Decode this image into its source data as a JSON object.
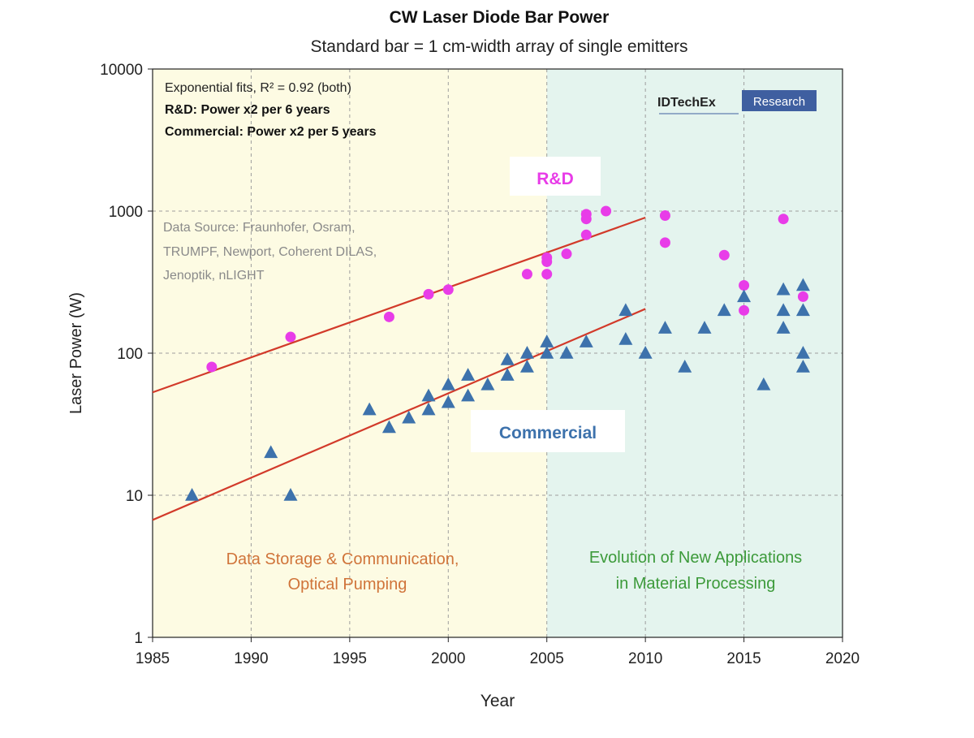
{
  "colors": {
    "left_region": "#fdfbe3",
    "right_region": "#e4f4ee",
    "rd": "#e83ce8",
    "commercial": "#3d72ac",
    "fit_line": "#d23a2a",
    "left_region_text": "#d0743a",
    "right_region_text": "#3c9a3a",
    "data_source_text": "#8a8a8a",
    "logo_box": "#3f5fa0",
    "grid": "#9e9e9e"
  },
  "chart_data": {
    "type": "scatter",
    "title": "CW Laser Diode Bar Power",
    "subtitle": "Standard bar = 1 cm-width array of single emitters",
    "xlabel": "Year",
    "ylabel": "Laser Power (W)",
    "xlim": [
      1985,
      2020
    ],
    "ylim": [
      1,
      10000
    ],
    "yscale": "log",
    "grid": true,
    "x_ticks": [
      1985,
      1990,
      1995,
      2000,
      2005,
      2010,
      2015,
      2020
    ],
    "y_ticks": [
      1,
      10,
      100,
      1000,
      10000
    ],
    "x_tick_labels": [
      "1985",
      "1990",
      "1995",
      "2000",
      "2005",
      "2010",
      "2015",
      "2020"
    ],
    "y_tick_labels": [
      "1",
      "10",
      "100",
      "1000",
      "10000"
    ],
    "regions": [
      {
        "x": [
          1985,
          2005
        ],
        "label_lines": [
          "Data Storage & Communication,",
          "Optical Pumping"
        ]
      },
      {
        "x": [
          2005,
          2020
        ],
        "label_lines": [
          "Evolution of New Applications",
          "in Material Processing"
        ]
      }
    ],
    "series": [
      {
        "name": "R&D",
        "marker": "circle",
        "points": [
          [
            1988,
            80
          ],
          [
            1992,
            130
          ],
          [
            1997,
            180
          ],
          [
            1999,
            260
          ],
          [
            2000,
            280
          ],
          [
            2004,
            360
          ],
          [
            2005,
            360
          ],
          [
            2005,
            440
          ],
          [
            2005,
            470
          ],
          [
            2006,
            500
          ],
          [
            2007,
            680
          ],
          [
            2007,
            880
          ],
          [
            2007,
            950
          ],
          [
            2008,
            1000
          ],
          [
            2011,
            600
          ],
          [
            2011,
            930
          ],
          [
            2014,
            490
          ],
          [
            2015,
            200
          ],
          [
            2015,
            300
          ],
          [
            2017,
            880
          ],
          [
            2018,
            250
          ]
        ],
        "fit": {
          "x": [
            1985,
            2010
          ],
          "y": [
            53,
            900
          ]
        }
      },
      {
        "name": "Commercial",
        "marker": "triangle",
        "points": [
          [
            1987,
            10
          ],
          [
            1991,
            20
          ],
          [
            1992,
            10
          ],
          [
            1996,
            40
          ],
          [
            1997,
            30
          ],
          [
            1998,
            35
          ],
          [
            1999,
            40
          ],
          [
            1999,
            50
          ],
          [
            2000,
            45
          ],
          [
            2000,
            60
          ],
          [
            2001,
            50
          ],
          [
            2001,
            70
          ],
          [
            2002,
            60
          ],
          [
            2003,
            70
          ],
          [
            2003,
            90
          ],
          [
            2004,
            80
          ],
          [
            2004,
            100
          ],
          [
            2005,
            100
          ],
          [
            2005,
            120
          ],
          [
            2006,
            100
          ],
          [
            2007,
            120
          ],
          [
            2009,
            125
          ],
          [
            2009,
            200
          ],
          [
            2010,
            100
          ],
          [
            2011,
            150
          ],
          [
            2012,
            80
          ],
          [
            2013,
            150
          ],
          [
            2014,
            200
          ],
          [
            2015,
            250
          ],
          [
            2016,
            60
          ],
          [
            2017,
            150
          ],
          [
            2017,
            200
          ],
          [
            2017,
            280
          ],
          [
            2018,
            80
          ],
          [
            2018,
            100
          ],
          [
            2018,
            200
          ],
          [
            2018,
            300
          ]
        ],
        "fit": {
          "x": [
            1985,
            2010
          ],
          "y": [
            6.7,
            205
          ]
        }
      }
    ],
    "annotations": {
      "fit_lines": [
        "Exponential fits, R² = 0.92 (both)",
        "R&D: Power x2 per 6 years",
        "Commercial: Power x2 per 5 years"
      ],
      "data_source_lines": [
        "Data Source: Fraunhofer, Osram,",
        "TRUMPF, Newport, Coherent DILAS,",
        "Jenoptik, nLIGHT"
      ],
      "rd_label": "R&D",
      "commercial_label": "Commercial",
      "logo_text": "IDTechEx",
      "logo_box_text": "Research"
    }
  }
}
